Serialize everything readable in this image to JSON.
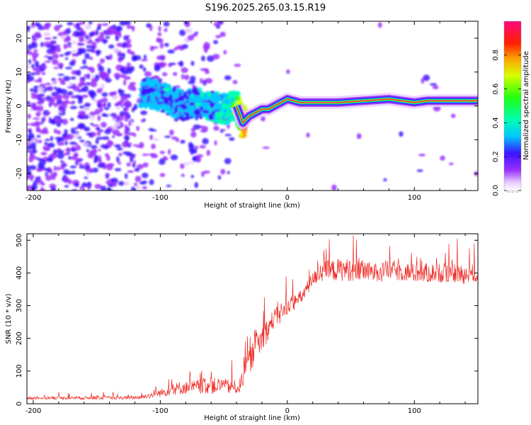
{
  "title": "S196.2025.265.03.15.R19",
  "chart_data": [
    {
      "type": "heatmap",
      "title": "",
      "xlabel": "Height of straight line (km)",
      "ylabel": "Frequency (Hz)",
      "xlim": [
        -205,
        150
      ],
      "ylim": [
        -25,
        25
      ],
      "xticks": [
        -200,
        -100,
        0,
        100
      ],
      "yticks": [
        -20,
        -10,
        0,
        10,
        20
      ],
      "xtick_labels": [
        "-200",
        "-100",
        "0",
        "100"
      ],
      "ytick_labels": [
        "-20",
        "-10",
        "0",
        "10",
        "20"
      ],
      "colorbar": {
        "label": "Normalized spectral amplitude",
        "range": [
          0,
          1
        ],
        "ticks": [
          0.0,
          0.2,
          0.4,
          0.6,
          0.8
        ],
        "tick_labels": [
          "0.0",
          "0.2",
          "0.4",
          "0.6",
          "0.8"
        ]
      },
      "signal_ridge": {
        "description_x": [
          -110,
          -100,
          -90,
          -80,
          -70,
          -60,
          -50,
          -40,
          -35,
          -30,
          -25,
          -20,
          -15,
          -10,
          -5,
          0,
          10,
          20,
          30,
          40,
          60,
          80,
          90,
          100,
          110,
          120,
          150
        ],
        "frequency_hz": [
          4,
          3,
          1,
          0,
          1,
          0,
          -1,
          0,
          -5,
          -3,
          -2,
          -1,
          -1,
          0,
          1,
          2,
          1,
          1,
          1,
          1,
          1.5,
          2,
          1.5,
          1,
          1.5,
          1.5,
          1.5
        ],
        "amplitude": [
          0.25,
          0.25,
          0.3,
          0.25,
          0.3,
          0.3,
          0.3,
          0.5,
          0.85,
          0.75,
          0.75,
          0.75,
          0.85,
          0.85,
          0.8,
          0.75,
          0.95,
          0.95,
          0.95,
          0.85,
          0.9,
          0.9,
          0.95,
          0.95,
          0.95,
          0.95,
          0.95
        ]
      }
    },
    {
      "type": "line",
      "title": "",
      "xlabel": "Height of straight line (km)",
      "ylabel": "SNR (10 * v/v)",
      "xlim": [
        -205,
        150
      ],
      "ylim": [
        0,
        520
      ],
      "xticks": [
        -200,
        -100,
        0,
        100
      ],
      "yticks": [
        0,
        100,
        200,
        300,
        400,
        500
      ],
      "xtick_labels": [
        "-200",
        "-100",
        "0",
        "100"
      ],
      "ytick_labels": [
        "0",
        "100",
        "200",
        "300",
        "400",
        "500"
      ],
      "series": [
        {
          "name": "SNR",
          "color": "#ee2a24",
          "envelope_x": [
            -205,
            -190,
            -170,
            -150,
            -130,
            -115,
            -105,
            -95,
            -85,
            -75,
            -65,
            -55,
            -45,
            -38,
            -34,
            -30,
            -25,
            -20,
            -15,
            -10,
            -5,
            0,
            5,
            10,
            15,
            20,
            25,
            30,
            40,
            50,
            60,
            70,
            80,
            90,
            100,
            110,
            120,
            130,
            140,
            150
          ],
          "envelope_mean": [
            17,
            18,
            18,
            18,
            18,
            20,
            28,
            38,
            48,
            50,
            55,
            55,
            52,
            50,
            90,
            130,
            170,
            200,
            230,
            265,
            270,
            300,
            310,
            320,
            350,
            380,
            400,
            405,
            410,
            410,
            405,
            400,
            410,
            405,
            400,
            400,
            400,
            400,
            395,
            400
          ],
          "envelope_amplitude": [
            8,
            10,
            10,
            10,
            10,
            12,
            20,
            30,
            40,
            40,
            50,
            50,
            45,
            40,
            60,
            80,
            90,
            90,
            70,
            60,
            55,
            50,
            50,
            50,
            45,
            45,
            55,
            65,
            70,
            70,
            65,
            60,
            65,
            60,
            60,
            60,
            60,
            60,
            60,
            60
          ]
        }
      ]
    }
  ]
}
